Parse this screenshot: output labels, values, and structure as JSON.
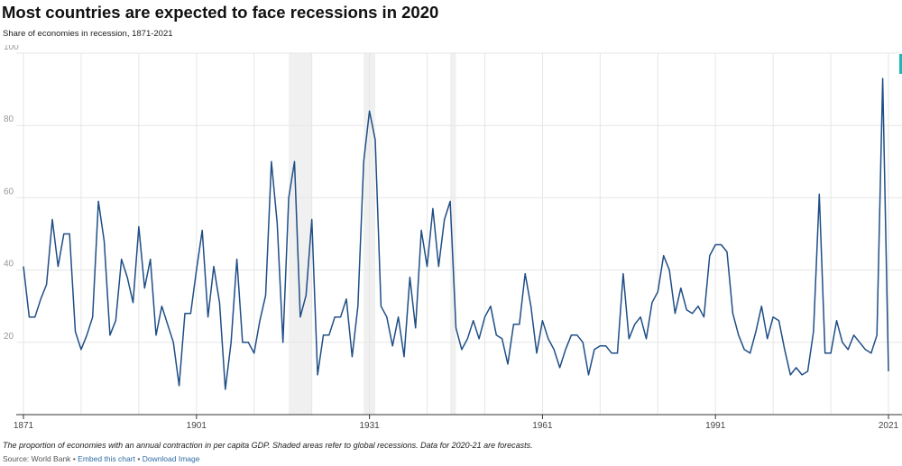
{
  "header": {
    "title": "Most countries are expected to face recessions in 2020",
    "subtitle": "Share of economies in recession, 1871-2021"
  },
  "footer": {
    "note": "The proportion of economies with an annual contraction in per capita GDP. Shaded areas refer to global recessions. Data for 2020-21 are forecasts.",
    "source_label": "Source: World Bank",
    "separator": "•",
    "embed_link": "Embed this chart",
    "download_link": "Download Image"
  },
  "colors": {
    "line": "#1f4e86",
    "recession_shade": "#f0f0f0",
    "link": "#2f6ea5"
  },
  "chart_data": {
    "type": "line",
    "title": "Most countries are expected to face recessions in 2020",
    "subtitle": "Share of economies in recession, 1871-2021",
    "xlabel": "",
    "ylabel": "",
    "xlim": [
      1871,
      2021
    ],
    "ylim": [
      0,
      100
    ],
    "y_ticks": [
      20,
      40,
      60,
      80,
      100
    ],
    "x_ticks": [
      1871,
      1901,
      1931,
      1961,
      1991,
      2021
    ],
    "grid": true,
    "recession_periods": [
      [
        1917,
        1921
      ],
      [
        1930,
        1932
      ],
      [
        1945,
        1946
      ]
    ],
    "series": [
      {
        "x": [
          1871,
          1872,
          1873,
          1874,
          1875,
          1876,
          1877,
          1878,
          1879,
          1880,
          1881,
          1882,
          1883,
          1884,
          1885,
          1886,
          1887,
          1888,
          1889,
          1890,
          1891,
          1892,
          1893,
          1894,
          1895,
          1896,
          1897,
          1898,
          1899,
          1900,
          1901,
          1902,
          1903,
          1904,
          1905,
          1906,
          1907,
          1908,
          1909,
          1910,
          1911,
          1912,
          1913,
          1914,
          1915,
          1916,
          1917,
          1918,
          1919,
          1920,
          1921,
          1922,
          1923,
          1924,
          1925,
          1926,
          1927,
          1928,
          1929,
          1930,
          1931,
          1932,
          1933,
          1934,
          1935,
          1936,
          1937,
          1938,
          1939,
          1940,
          1941,
          1942,
          1943,
          1944,
          1945,
          1946,
          1947,
          1948,
          1949,
          1950,
          1951,
          1952,
          1953,
          1954,
          1955,
          1956,
          1957,
          1958,
          1959,
          1960,
          1961,
          1962,
          1963,
          1964,
          1965,
          1966,
          1967,
          1968,
          1969,
          1970,
          1971,
          1972,
          1973,
          1974,
          1975,
          1976,
          1977,
          1978,
          1979,
          1980,
          1981,
          1982,
          1983,
          1984,
          1985,
          1986,
          1987,
          1988,
          1989,
          1990,
          1991,
          1992,
          1993,
          1994,
          1995,
          1996,
          1997,
          1998,
          1999,
          2000,
          2001,
          2002,
          2003,
          2004,
          2005,
          2006,
          2007,
          2008,
          2009,
          2010,
          2011,
          2012,
          2013,
          2014,
          2015,
          2016,
          2017,
          2018,
          2019,
          2020,
          2021
        ],
        "values": [
          41,
          27,
          27,
          32,
          36,
          54,
          41,
          50,
          50,
          23,
          18,
          22,
          27,
          59,
          48,
          22,
          26,
          43,
          38,
          31,
          52,
          35,
          43,
          22,
          30,
          25,
          20,
          8,
          28,
          28,
          40,
          51,
          27,
          41,
          31,
          7,
          20,
          43,
          20,
          20,
          17,
          26,
          33,
          70,
          53,
          20,
          60,
          70,
          27,
          33,
          54,
          11,
          22,
          22,
          27,
          27,
          32,
          16,
          30,
          70,
          84,
          76,
          30,
          27,
          19,
          27,
          16,
          38,
          24,
          51,
          41,
          57,
          41,
          54,
          59,
          24,
          18,
          21,
          26,
          21,
          27,
          30,
          22,
          21,
          14,
          25,
          25,
          39,
          30,
          17,
          26,
          21,
          18,
          13,
          18,
          22,
          22,
          20,
          11,
          18,
          19,
          19,
          17,
          17,
          39,
          21,
          25,
          27,
          21,
          31,
          34,
          44,
          40,
          28,
          35,
          29,
          28,
          30,
          27,
          44,
          47,
          47,
          45,
          28,
          22,
          18,
          17,
          23,
          30,
          21,
          27,
          26,
          18,
          11,
          13,
          11,
          12,
          23,
          61,
          17,
          17,
          26,
          20,
          18,
          22,
          20,
          18,
          17,
          22,
          93,
          12
        ]
      }
    ]
  }
}
